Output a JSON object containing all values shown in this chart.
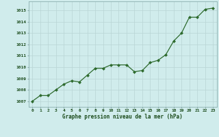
{
  "x": [
    0,
    1,
    2,
    3,
    4,
    5,
    6,
    7,
    8,
    9,
    10,
    11,
    12,
    13,
    14,
    15,
    16,
    17,
    18,
    19,
    20,
    21,
    22,
    23
  ],
  "y": [
    1007.0,
    1007.5,
    1007.5,
    1008.0,
    1008.5,
    1008.8,
    1008.7,
    1009.3,
    1009.9,
    1009.9,
    1010.2,
    1010.2,
    1010.2,
    1009.6,
    1009.7,
    1010.4,
    1010.6,
    1011.1,
    1012.3,
    1013.0,
    1014.4,
    1014.4,
    1015.1,
    1015.2
  ],
  "line_color": "#2d6a2d",
  "marker_color": "#2d6a2d",
  "bg_color": "#d0ecec",
  "grid_color": "#b8d4d4",
  "xlabel": "Graphe pression niveau de la mer (hPa)",
  "xlabel_color": "#1a4a1a",
  "tick_color": "#1a4a1a",
  "ylim": [
    1006.5,
    1015.8
  ],
  "yticks": [
    1007,
    1008,
    1009,
    1010,
    1011,
    1012,
    1013,
    1014,
    1015
  ],
  "xlim": [
    -0.5,
    23.5
  ],
  "xticks": [
    0,
    1,
    2,
    3,
    4,
    5,
    6,
    7,
    8,
    9,
    10,
    11,
    12,
    13,
    14,
    15,
    16,
    17,
    18,
    19,
    20,
    21,
    22,
    23
  ]
}
